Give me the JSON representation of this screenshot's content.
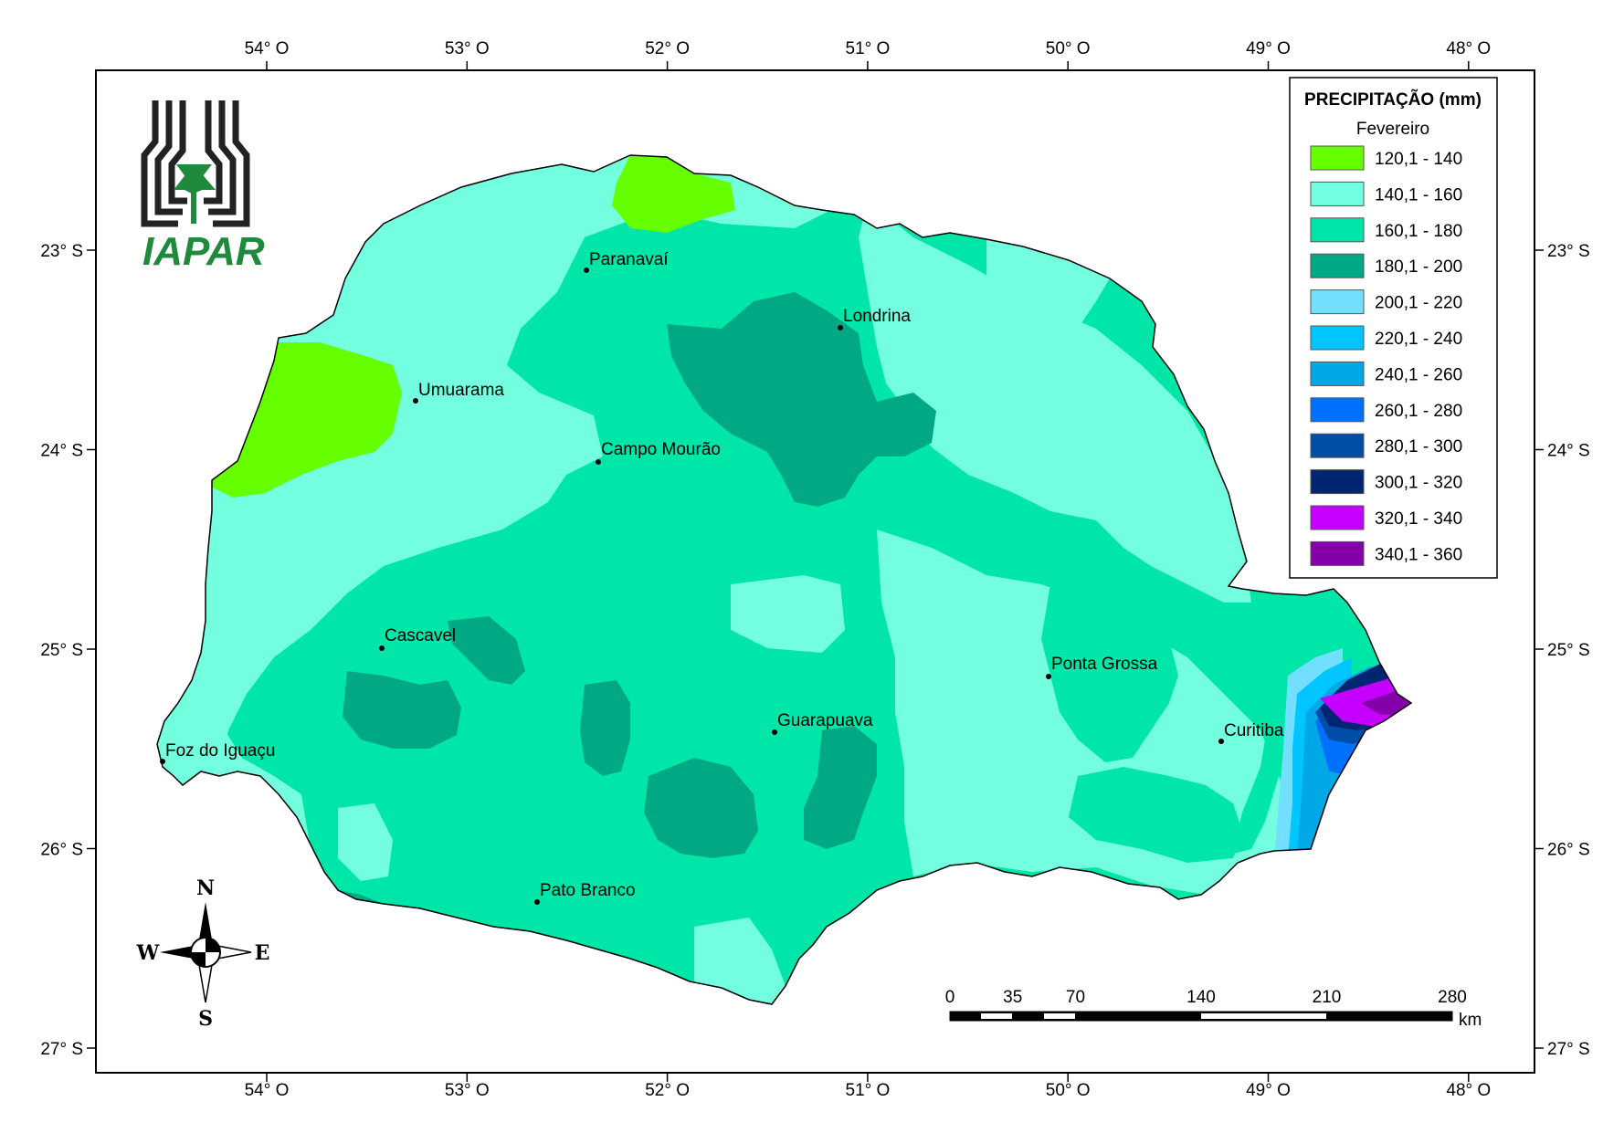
{
  "legend": {
    "title": "PRECIPITAÇÃO (mm)",
    "subtitle": "Fevereiro",
    "classes": [
      {
        "label": "120,1 - 140",
        "color": "#66ff00"
      },
      {
        "label": "140,1 - 160",
        "color": "#73ffdf"
      },
      {
        "label": "160,1 - 180",
        "color": "#00e6a9"
      },
      {
        "label": "180,1 - 200",
        "color": "#00a884"
      },
      {
        "label": "200,1 - 220",
        "color": "#73dfff"
      },
      {
        "label": "220,1 - 240",
        "color": "#00c5ff"
      },
      {
        "label": "240,1 - 260",
        "color": "#00a9e6"
      },
      {
        "label": "260,1 - 280",
        "color": "#0070ff"
      },
      {
        "label": "280,1 - 300",
        "color": "#004da8"
      },
      {
        "label": "300,1 - 320",
        "color": "#002673"
      },
      {
        "label": "320,1 - 340",
        "color": "#c500ff"
      },
      {
        "label": "340,1 - 360",
        "color": "#8400a8"
      }
    ]
  },
  "axes": {
    "longitude_labels": [
      "54° O",
      "53° O",
      "52° O",
      "51° O",
      "50° O",
      "49° O",
      "48° O"
    ],
    "latitude_labels": [
      "23° S",
      "24° S",
      "25° S",
      "26° S",
      "27° S"
    ]
  },
  "cities": [
    {
      "name": "Paranavaí"
    },
    {
      "name": "Londrina"
    },
    {
      "name": "Umuarama"
    },
    {
      "name": "Campo Mourão"
    },
    {
      "name": "Cascavel"
    },
    {
      "name": "Ponta Grossa"
    },
    {
      "name": "Guarapuava"
    },
    {
      "name": "Curitiba"
    },
    {
      "name": "Foz do Iguaçu"
    },
    {
      "name": "Pato Branco"
    }
  ],
  "logo": {
    "text": "IAPAR"
  },
  "compass": {
    "n": "N",
    "s": "S",
    "e": "E",
    "w": "W"
  },
  "scale_bar": {
    "ticks": [
      "0",
      "35",
      "70",
      "140",
      "210",
      "280"
    ],
    "unit": "km"
  }
}
